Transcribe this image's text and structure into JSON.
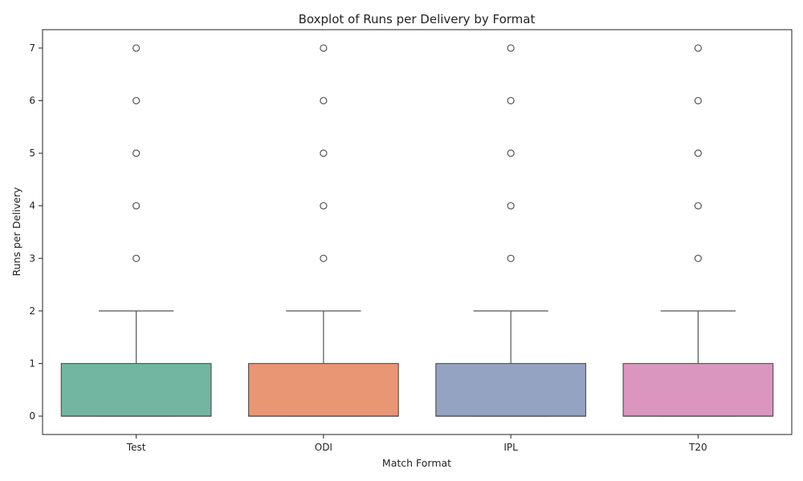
{
  "chart_data": {
    "type": "box",
    "title": "Boxplot of Runs per Delivery by Format",
    "xlabel": "Match Format",
    "ylabel": "Runs per Delivery",
    "ylim": [
      -0.35,
      7.35
    ],
    "yticks": [
      0,
      1,
      2,
      3,
      4,
      5,
      6,
      7
    ],
    "grid": false,
    "legend": "none",
    "categories": [
      "Test",
      "ODI",
      "IPL",
      "T20"
    ],
    "series": [
      {
        "category": "Test",
        "color": "#72b6a1",
        "q1": 0,
        "median": 0,
        "q3": 1,
        "whisker_low": 0,
        "whisker_high": 2,
        "outliers": [
          3,
          4,
          5,
          6,
          7
        ]
      },
      {
        "category": "ODI",
        "color": "#e99675",
        "q1": 0,
        "median": 0,
        "q3": 1,
        "whisker_low": 0,
        "whisker_high": 2,
        "outliers": [
          3,
          4,
          5,
          6,
          7
        ]
      },
      {
        "category": "IPL",
        "color": "#95a3c3",
        "q1": 0,
        "median": 0,
        "q3": 1,
        "whisker_low": 0,
        "whisker_high": 2,
        "outliers": [
          3,
          4,
          5,
          6,
          7
        ]
      },
      {
        "category": "T20",
        "color": "#db96c0",
        "q1": 0,
        "median": 0,
        "q3": 1,
        "whisker_low": 0,
        "whisker_high": 2,
        "outliers": [
          3,
          4,
          5,
          6,
          7
        ]
      }
    ],
    "line_color": "#555555",
    "axis_color": "#222222"
  }
}
